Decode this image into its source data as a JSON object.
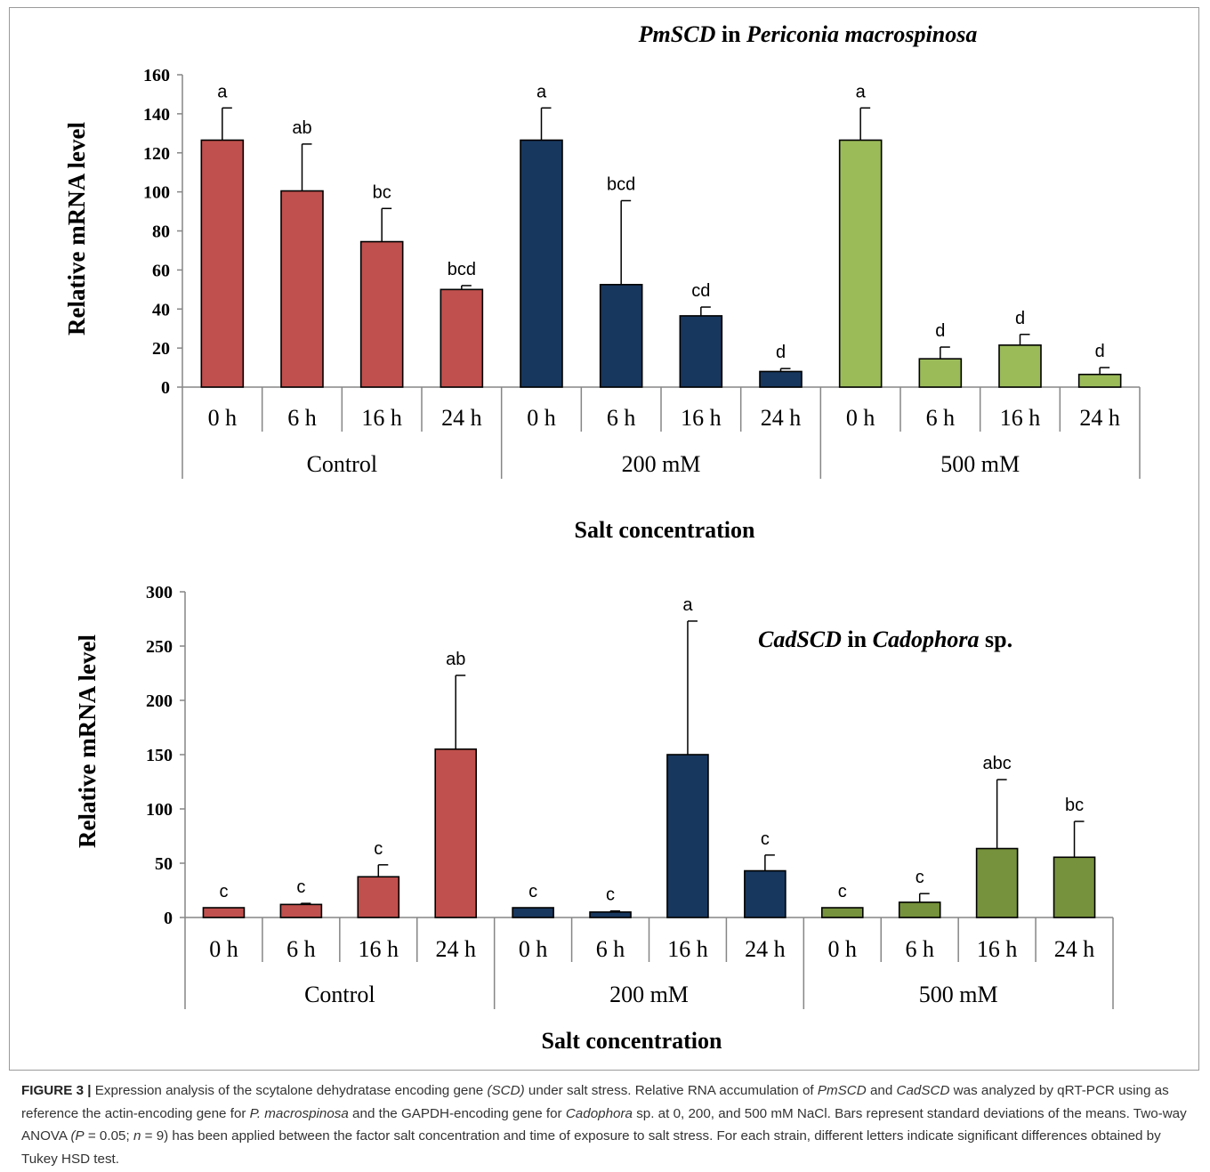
{
  "chart_data": [
    {
      "type": "bar",
      "title": "PmSCD in Periconia macrospinosa",
      "title_parts": {
        "gene": "PmSCD",
        "in": " in ",
        "species": "Periconia macrospinosa",
        "tail": ""
      },
      "ylabel": "Relative mRNA level",
      "xlabel": "Salt concentration",
      "ylim": [
        0,
        160
      ],
      "yticks": [
        0,
        20,
        40,
        60,
        80,
        100,
        120,
        140,
        160
      ],
      "groups": [
        "Control",
        "200 mM",
        "500 mM"
      ],
      "categories": [
        "0 h",
        "6 h",
        "16 h",
        "24 h"
      ],
      "series": [
        {
          "group": "Control",
          "color": "#c0504d",
          "values": [
            126.5,
            100.5,
            74.5,
            50
          ],
          "errors": [
            16.5,
            24,
            17,
            2
          ],
          "letters": [
            "a",
            "ab",
            "bc",
            "bcd"
          ]
        },
        {
          "group": "200 mM",
          "color": "#17375e",
          "values": [
            126.5,
            52.5,
            36.5,
            8
          ],
          "errors": [
            16.5,
            43,
            4.5,
            1.5
          ],
          "letters": [
            "a",
            "bcd",
            "cd",
            "d"
          ]
        },
        {
          "group": "500 mM",
          "color": "#9bbb59",
          "values": [
            126.5,
            14.5,
            21.5,
            6.5
          ],
          "errors": [
            16.5,
            6,
            5.5,
            3.5
          ],
          "letters": [
            "a",
            "d",
            "d",
            "d"
          ]
        }
      ]
    },
    {
      "type": "bar",
      "title": "CadSCD in Cadophora sp.",
      "title_parts": {
        "gene": "CadSCD",
        "in": " in ",
        "species": "Cadophora",
        "tail": " sp."
      },
      "ylabel": "Relative mRNA level",
      "xlabel": "Salt concentration",
      "ylim": [
        0,
        300
      ],
      "yticks": [
        0,
        50,
        100,
        150,
        200,
        250,
        300
      ],
      "groups": [
        "Control",
        "200 mM",
        "500 mM"
      ],
      "categories": [
        "0 h",
        "6 h",
        "16 h",
        "24 h"
      ],
      "series": [
        {
          "group": "Control",
          "color": "#c0504d",
          "values": [
            9,
            12,
            37.5,
            155
          ],
          "errors": [
            0,
            1,
            11,
            68
          ],
          "letters": [
            "c",
            "c",
            "c",
            "ab"
          ]
        },
        {
          "group": "200 mM",
          "color": "#17375e",
          "values": [
            9,
            5,
            150,
            43
          ],
          "errors": [
            0,
            1,
            123,
            14.5
          ],
          "letters": [
            "c",
            "c",
            "a",
            "c"
          ]
        },
        {
          "group": "500 mM",
          "color": "#76923c",
          "values": [
            9,
            14,
            63.5,
            55.5
          ],
          "errors": [
            0,
            8,
            63.5,
            33
          ],
          "letters": [
            "c",
            "c",
            "abc",
            "bc"
          ]
        }
      ]
    }
  ],
  "caption": {
    "label": "FIGURE 3 |",
    "t1": " Expression analysis of the scytalone dehydratase encoding gene ",
    "i1": "(SCD)",
    "t2": " under salt stress. Relative RNA accumulation of ",
    "i2": "PmSCD",
    "t3": " and ",
    "i3": "CadSCD",
    "t4": " was analyzed by qRT-PCR using as reference the actin-encoding gene for ",
    "i4": "P. macrospinosa",
    "t5": " and the GAPDH-encoding gene for ",
    "i5": "Cadophora",
    "t6": " sp. at 0, 200, and 500 mM NaCl. Bars represent standard deviations of the means. Two-way ANOVA ",
    "i6": "(P",
    "t7": " = 0.05; ",
    "i7": "n",
    "t8": " = 9) has been applied between the factor salt concentration and time of exposure to salt stress. For each strain, different letters indicate significant differences obtained by Tukey HSD test."
  }
}
